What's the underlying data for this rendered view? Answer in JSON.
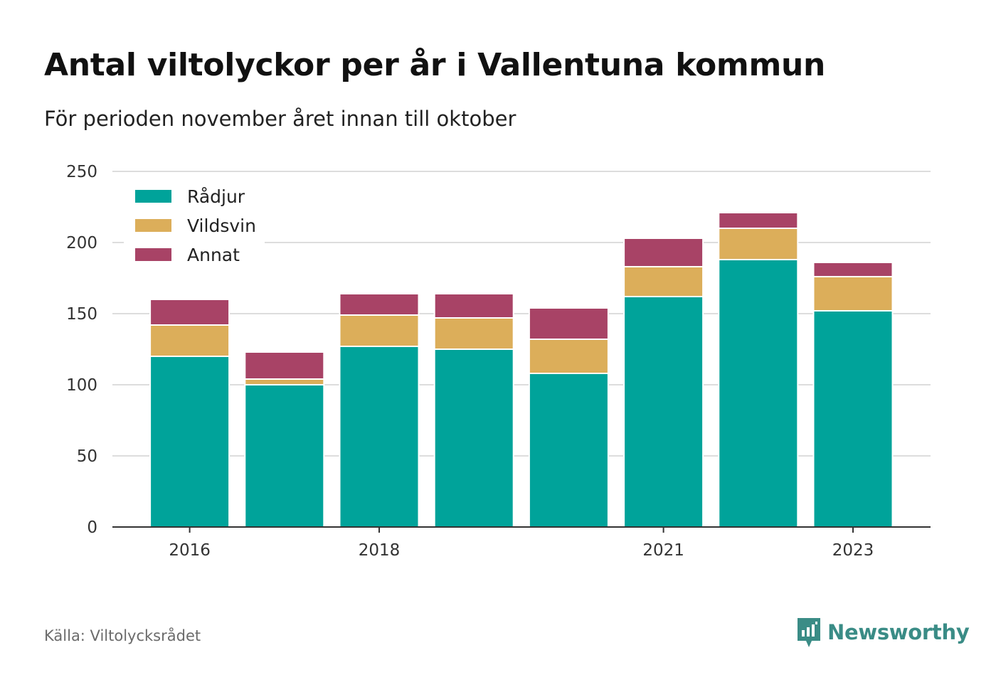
{
  "title": "Antal viltolyckor per år i Vallentuna kommun",
  "subtitle": "För perioden november året innan till oktober",
  "source": "Källa: Viltolycksrådet",
  "brand": {
    "name": "Newsworthy",
    "icon": "newsworthy-logo-icon",
    "color": "#3a8c86"
  },
  "chart_data": {
    "type": "bar",
    "stacked": true,
    "categories": [
      "2016",
      "2017",
      "2018",
      "2019",
      "2020",
      "2021",
      "2022",
      "2023"
    ],
    "x_tick_labels": [
      "2016",
      "",
      "2018",
      "",
      "",
      "2021",
      "",
      "2023"
    ],
    "series": [
      {
        "name": "Rådjur",
        "color": "#00a39a",
        "values": [
          120,
          100,
          127,
          125,
          108,
          162,
          188,
          152
        ]
      },
      {
        "name": "Vildsvin",
        "color": "#dcae5a",
        "values": [
          22,
          4,
          22,
          22,
          24,
          21,
          22,
          24
        ]
      },
      {
        "name": "Annat",
        "color": "#a84366",
        "values": [
          18,
          19,
          15,
          17,
          22,
          20,
          11,
          10
        ]
      }
    ],
    "ylim": [
      0,
      250
    ],
    "yticks": [
      0,
      50,
      100,
      150,
      200,
      250
    ],
    "xlabel": "",
    "ylabel": "",
    "grid": true,
    "legend": "top-left"
  }
}
